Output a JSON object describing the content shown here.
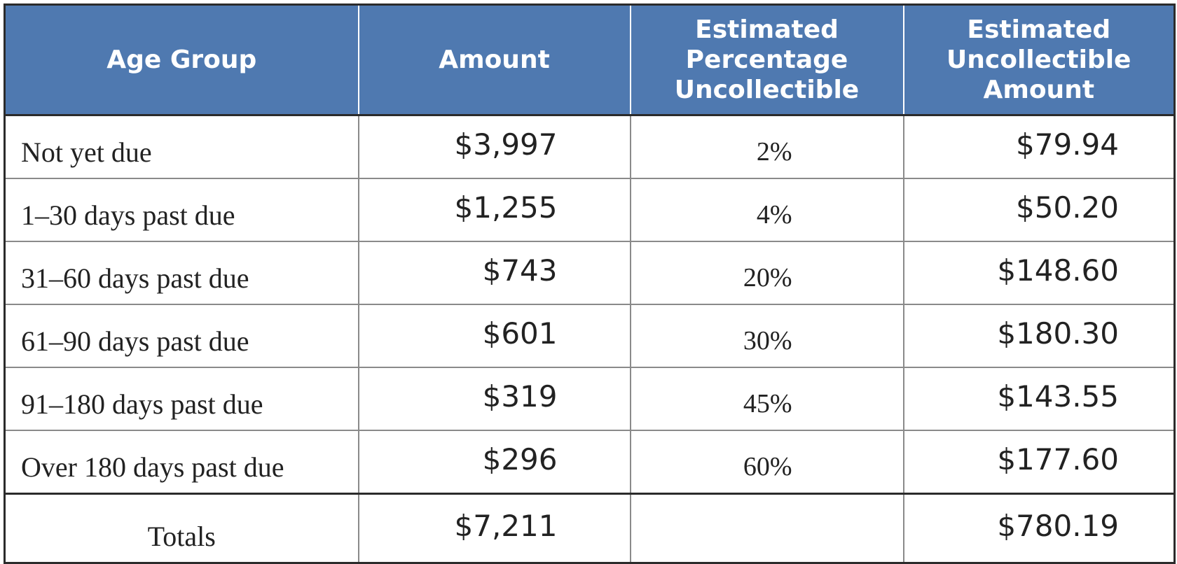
{
  "table": {
    "headers": [
      [
        "Age Group"
      ],
      [
        "Amount"
      ],
      [
        "Estimated",
        "Percentage",
        "Uncollectible"
      ],
      [
        "Estimated",
        "Uncollectible",
        "Amount"
      ]
    ],
    "rows": [
      {
        "age_group": "Not yet due",
        "amount": "$3,997",
        "percentage": "2%",
        "uncollectible": "$79.94"
      },
      {
        "age_group": "1–30 days past due",
        "amount": "$1,255",
        "percentage": "4%",
        "uncollectible": "$50.20"
      },
      {
        "age_group": "31–60 days past due",
        "amount": "$743",
        "percentage": "20%",
        "uncollectible": "$148.60"
      },
      {
        "age_group": "61–90 days past due",
        "amount": "$601",
        "percentage": "30%",
        "uncollectible": "$180.30"
      },
      {
        "age_group": "91–180 days past due",
        "amount": "$319",
        "percentage": "45%",
        "uncollectible": "$143.55"
      },
      {
        "age_group": "Over 180 days past due",
        "amount": "$296",
        "percentage": "60%",
        "uncollectible": "$177.60"
      }
    ],
    "totals": {
      "label": "Totals",
      "amount": "$7,211",
      "percentage": "",
      "uncollectible": "$780.19"
    }
  },
  "colors": {
    "header_background": "#4f79b0",
    "header_text": "#ffffff",
    "border": "#2b2b2b"
  }
}
